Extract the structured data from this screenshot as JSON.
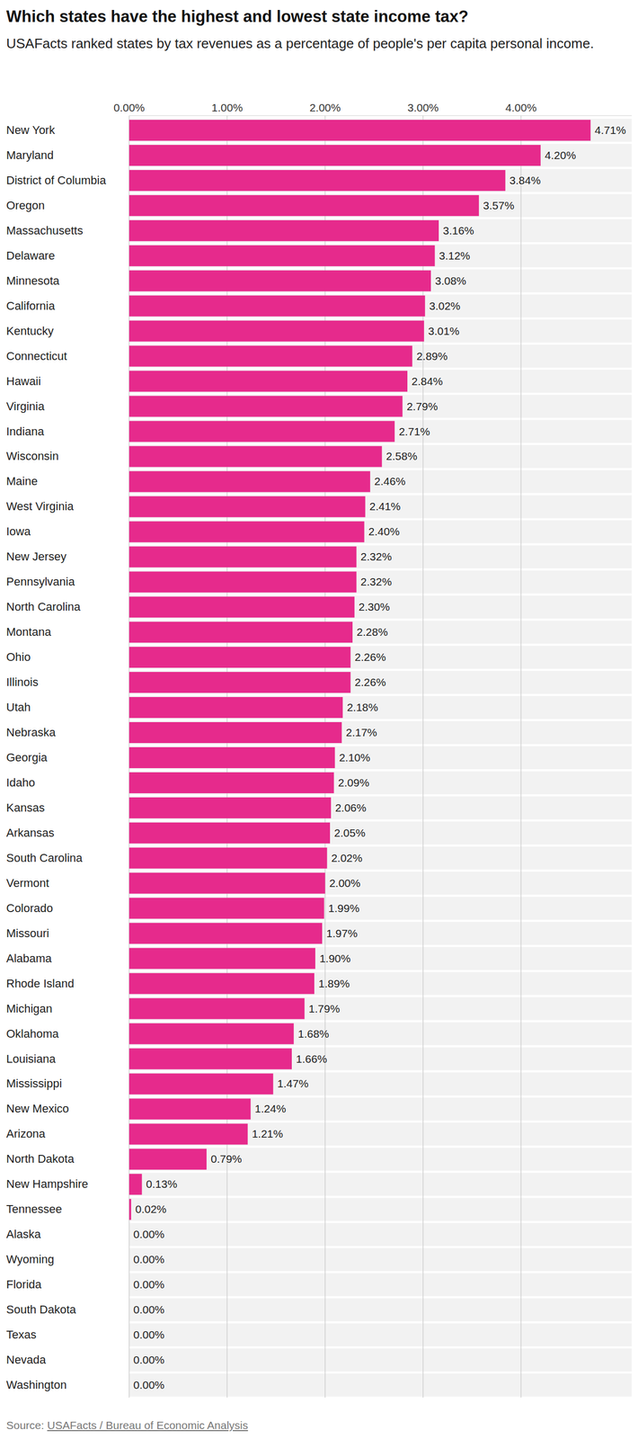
{
  "chart_data": {
    "type": "bar",
    "orientation": "horizontal",
    "title": "Which states have the highest and lowest state income tax?",
    "subtitle": "USAFacts ranked states by tax revenues as a percentage of people's per capita personal income.",
    "source_label": "Source:",
    "source": "USAFacts / Bureau of Economic Analysis",
    "categories": [
      "New York",
      "Maryland",
      "District of Columbia",
      "Oregon",
      "Massachusetts",
      "Delaware",
      "Minnesota",
      "California",
      "Kentucky",
      "Connecticut",
      "Hawaii",
      "Virginia",
      "Indiana",
      "Wisconsin",
      "Maine",
      "West Virginia",
      "Iowa",
      "New Jersey",
      "Pennsylvania",
      "North Carolina",
      "Montana",
      "Ohio",
      "Illinois",
      "Utah",
      "Nebraska",
      "Georgia",
      "Idaho",
      "Kansas",
      "Arkansas",
      "South Carolina",
      "Vermont",
      "Colorado",
      "Missouri",
      "Alabama",
      "Rhode Island",
      "Michigan",
      "Oklahoma",
      "Louisiana",
      "Mississippi",
      "New Mexico",
      "Arizona",
      "North Dakota",
      "New Hampshire",
      "Tennessee",
      "Alaska",
      "Wyoming",
      "Florida",
      "South Dakota",
      "Texas",
      "Nevada",
      "Washington"
    ],
    "values": [
      4.71,
      4.2,
      3.84,
      3.57,
      3.16,
      3.12,
      3.08,
      3.02,
      3.01,
      2.89,
      2.84,
      2.79,
      2.71,
      2.58,
      2.46,
      2.41,
      2.4,
      2.32,
      2.32,
      2.3,
      2.28,
      2.26,
      2.26,
      2.18,
      2.17,
      2.1,
      2.09,
      2.06,
      2.05,
      2.02,
      2.0,
      1.99,
      1.97,
      1.9,
      1.89,
      1.79,
      1.68,
      1.66,
      1.47,
      1.24,
      1.21,
      0.79,
      0.13,
      0.02,
      0.0,
      0.0,
      0.0,
      0.0,
      0.0,
      0.0,
      0.0
    ],
    "value_labels": [
      "4.71%",
      "4.20%",
      "3.84%",
      "3.57%",
      "3.16%",
      "3.12%",
      "3.08%",
      "3.02%",
      "3.01%",
      "2.89%",
      "2.84%",
      "2.79%",
      "2.71%",
      "2.58%",
      "2.46%",
      "2.41%",
      "2.40%",
      "2.32%",
      "2.32%",
      "2.30%",
      "2.28%",
      "2.26%",
      "2.26%",
      "2.18%",
      "2.17%",
      "2.10%",
      "2.09%",
      "2.06%",
      "2.05%",
      "2.02%",
      "2.00%",
      "1.99%",
      "1.97%",
      "1.90%",
      "1.89%",
      "1.79%",
      "1.68%",
      "1.66%",
      "1.47%",
      "1.24%",
      "1.21%",
      "0.79%",
      "0.13%",
      "0.02%",
      "0.00%",
      "0.00%",
      "0.00%",
      "0.00%",
      "0.00%",
      "0.00%",
      "0.00%"
    ],
    "color": "#e62a8c",
    "xlim": [
      0,
      5.13
    ],
    "xticks": [
      {
        "value": 0,
        "label": "0.00%"
      },
      {
        "value": 1,
        "label": "1.00%"
      },
      {
        "value": 2,
        "label": "2.00%"
      },
      {
        "value": 3,
        "label": "3.00%"
      },
      {
        "value": 4,
        "label": "4.00%"
      }
    ],
    "grid": true,
    "data_labels": true
  }
}
